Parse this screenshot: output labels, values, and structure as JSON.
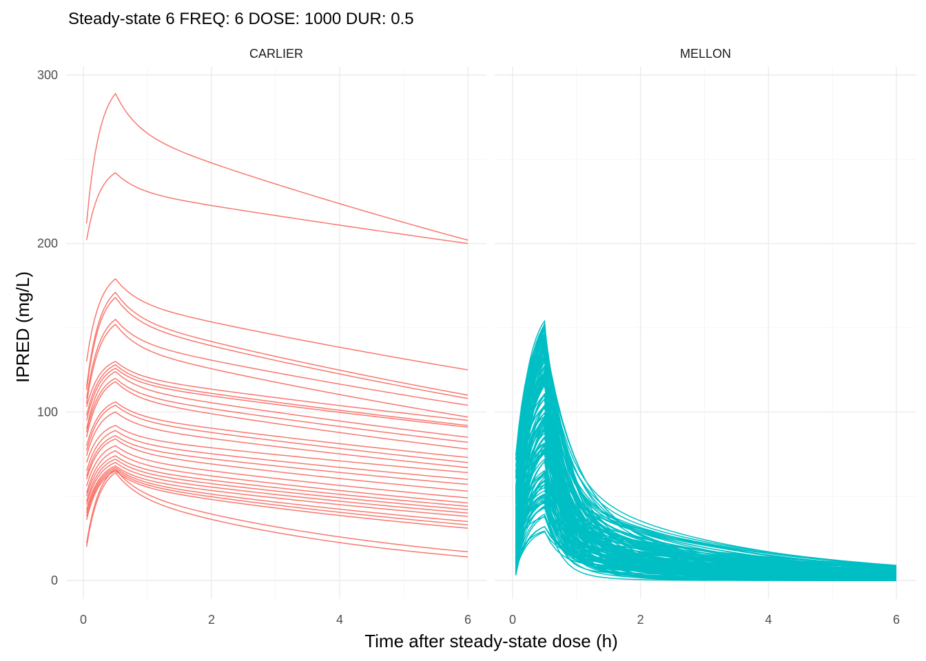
{
  "chart_data": {
    "type": "line",
    "title": "Steady-state 6 FREQ: 6 DOSE: 1000 DUR: 0.5",
    "xlabel": "Time after steady-state dose (h)",
    "ylabel": "IPRED (mg/L)",
    "xlim": [
      0,
      6
    ],
    "ylim": [
      0,
      300
    ],
    "x_ticks": [
      "0",
      "2",
      "4",
      "6"
    ],
    "x_tick_values": [
      0,
      2,
      4,
      6
    ],
    "y_ticks": [
      "0",
      "100",
      "200",
      "300"
    ],
    "y_tick_values": [
      0,
      100,
      200,
      300
    ],
    "infusion_duration": 0.5,
    "panels": [
      {
        "name": "CARLIER",
        "color": "#F8766D",
        "profiles": [
          {
            "trough": 212,
            "peak": 289,
            "end": 202
          },
          {
            "trough": 202,
            "peak": 242,
            "end": 200
          },
          {
            "trough": 130,
            "peak": 179,
            "end": 125
          },
          {
            "trough": 115,
            "peak": 171,
            "end": 110
          },
          {
            "trough": 113,
            "peak": 168,
            "end": 108
          },
          {
            "trough": 108,
            "peak": 155,
            "end": 104
          },
          {
            "trough": 105,
            "peak": 152,
            "end": 97
          },
          {
            "trough": 103,
            "peak": 130,
            "end": 95
          },
          {
            "trough": 98,
            "peak": 128,
            "end": 92
          },
          {
            "trough": 95,
            "peak": 126,
            "end": 91
          },
          {
            "trough": 90,
            "peak": 124,
            "end": 85
          },
          {
            "trough": 88,
            "peak": 120,
            "end": 82
          },
          {
            "trough": 85,
            "peak": 118,
            "end": 78
          },
          {
            "trough": 80,
            "peak": 106,
            "end": 73
          },
          {
            "trough": 77,
            "peak": 104,
            "end": 70
          },
          {
            "trough": 74,
            "peak": 100,
            "end": 67
          },
          {
            "trough": 70,
            "peak": 92,
            "end": 64
          },
          {
            "trough": 65,
            "peak": 89,
            "end": 60
          },
          {
            "trough": 62,
            "peak": 86,
            "end": 57
          },
          {
            "trough": 60,
            "peak": 84,
            "end": 53
          },
          {
            "trough": 56,
            "peak": 80,
            "end": 49
          },
          {
            "trough": 52,
            "peak": 77,
            "end": 46
          },
          {
            "trough": 50,
            "peak": 74,
            "end": 44
          },
          {
            "trough": 47,
            "peak": 72,
            "end": 42
          },
          {
            "trough": 45,
            "peak": 70,
            "end": 40
          },
          {
            "trough": 42,
            "peak": 68,
            "end": 38
          },
          {
            "trough": 40,
            "peak": 67,
            "end": 35
          },
          {
            "trough": 38,
            "peak": 66,
            "end": 33
          },
          {
            "trough": 36,
            "peak": 65,
            "end": 31
          },
          {
            "trough": 22,
            "peak": 66,
            "end": 17
          },
          {
            "trough": 20,
            "peak": 64,
            "end": 14
          }
        ]
      },
      {
        "name": "MELLON",
        "color": "#00BFC4",
        "band": {
          "peak_min": 25,
          "peak_max": 155,
          "trough_min": 3,
          "trough_max": 85,
          "end_min": 0,
          "end_max": 9,
          "n_profiles": 160
        }
      }
    ]
  }
}
